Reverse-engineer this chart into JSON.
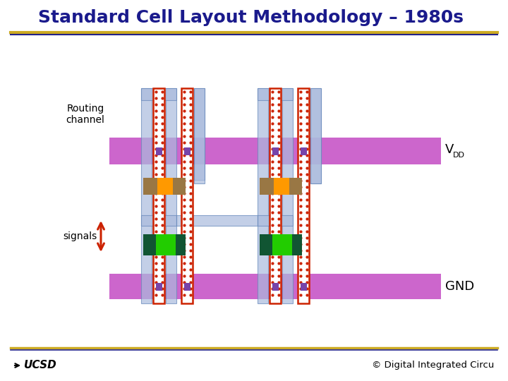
{
  "title": "Standard Cell Layout Methodology – 1980s",
  "title_color": "#1a1a8c",
  "title_fontsize": 18,
  "bg_color": "#ffffff",
  "vdd_color": "#cc66cc",
  "gnd_color": "#cc66cc",
  "blue_fill": "#aabbdd",
  "blue_edge": "#6688bb",
  "blue_alpha": 0.7,
  "red_poly_border": "#cc2200",
  "poly_dot_color": "#cc2200",
  "orange_color": "#ff9900",
  "brown_color": "#997744",
  "green_bright": "#22cc00",
  "green_dark": "#115533",
  "purple_via": "#7744aa",
  "gold_line": "#ccaa22",
  "navy_line": "#222288",
  "footer_text": "© Digital Integrated Circu",
  "routing_label": "Routing\nchannel",
  "vdd_label": "V",
  "vdd_sub": "DD",
  "gnd_label": "GND",
  "signals_label": "signals",
  "arrow_color": "#cc2200"
}
